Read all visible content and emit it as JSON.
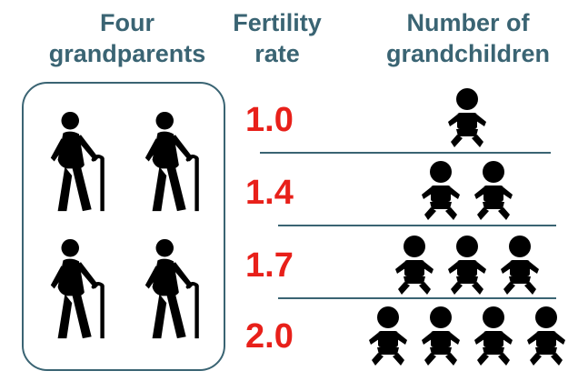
{
  "headers": {
    "grandparents": [
      "Four",
      "grandparents"
    ],
    "fertility": [
      "Fertility",
      "rate"
    ],
    "grandchildren": [
      "Number of",
      "grandchildren"
    ]
  },
  "rows": [
    {
      "rate": "1.0",
      "grandchildren": 1
    },
    {
      "rate": "1.4",
      "grandchildren": 2
    },
    {
      "rate": "1.7",
      "grandchildren": 3
    },
    {
      "rate": "2.0",
      "grandchildren": 4
    }
  ],
  "grandparent_count": 4,
  "icons": {
    "grandparent": "elderly-person-with-cane-icon",
    "grandchild": "baby-icon"
  },
  "colors": {
    "header": "#3a6473",
    "rate": "#e8201a",
    "icon": "#000000",
    "divider": "#3a6473"
  }
}
